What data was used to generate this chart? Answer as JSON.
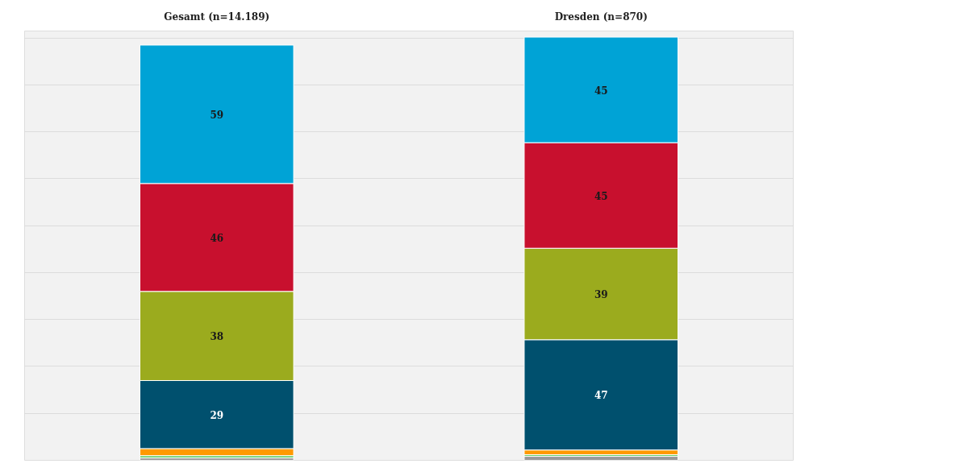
{
  "chart_data": {
    "type": "bar",
    "stacked": true,
    "categories": [
      "Gesamt (n=14.189)",
      "Dresden (n=870)"
    ],
    "ylim": [
      0,
      183
    ],
    "yticks": [
      {
        "value": 0,
        "label": null
      },
      {
        "value": 20,
        "label": null
      },
      {
        "value": 40,
        "label": null
      },
      {
        "value": 60,
        "label": null
      },
      {
        "value": 80,
        "label": null
      },
      {
        "value": 100,
        "label": null
      },
      {
        "value": 120,
        "label": null
      },
      {
        "value": 140,
        "label": null
      },
      {
        "value": 160,
        "label": null
      },
      {
        "value": 180,
        "label": null
      }
    ],
    "tick_labels": "x",
    "grid": "y",
    "series": [
      {
        "color": "#999999",
        "values": [
          1,
          1.7
        ],
        "value_labels": [
          null,
          null
        ]
      },
      {
        "color": "#66cc66",
        "values": [
          1,
          0.7
        ],
        "value_labels": [
          null,
          null
        ]
      },
      {
        "color": "#ff9900",
        "values": [
          3,
          2
        ],
        "value_labels": [
          null,
          null
        ]
      },
      {
        "color": "#00506e",
        "values": [
          29,
          47
        ],
        "value_labels": [
          "29",
          "47"
        ]
      },
      {
        "color": "#9bab1e",
        "values": [
          38,
          39
        ],
        "value_labels": [
          "38",
          "39"
        ]
      },
      {
        "color": "#c8102e",
        "values": [
          46,
          45
        ],
        "value_labels": [
          "46",
          "45"
        ]
      },
      {
        "color": "#00a3d6",
        "values": [
          59,
          45
        ],
        "value_labels": [
          "59",
          "45"
        ]
      }
    ]
  }
}
